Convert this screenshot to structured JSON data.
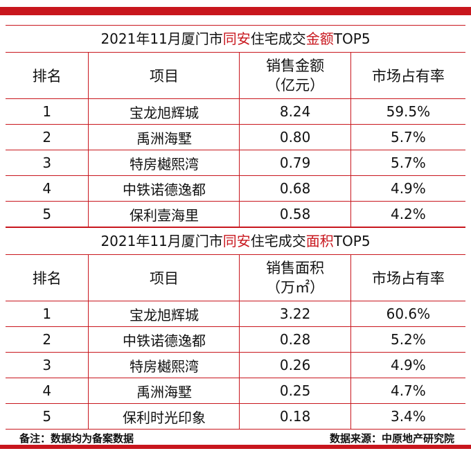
{
  "table1": {
    "title_prefix": "2021年11月厦门市",
    "title_hl1": "同安",
    "title_mid": "住宅成交",
    "title_hl2": "金额",
    "title_suffix": "TOP5",
    "headers": [
      "排名",
      "项目",
      "销售金额\n（亿元）",
      "市场占有率"
    ],
    "rows": [
      [
        "1",
        "宝龙旭辉城",
        "8.24",
        "59.5%"
      ],
      [
        "2",
        "禹洲海墅",
        "0.80",
        "5.7%"
      ],
      [
        "3",
        "特房樾熙湾",
        "0.79",
        "5.7%"
      ],
      [
        "4",
        "中铁诺德逸都",
        "0.68",
        "4.9%"
      ],
      [
        "5",
        "保利壹海里",
        "0.58",
        "4.2%"
      ]
    ]
  },
  "table2": {
    "title_prefix": "2021年11月厦门市",
    "title_hl1": "同安",
    "title_mid": "住宅成交",
    "title_hl2": "面积",
    "title_suffix": "TOP5",
    "headers": [
      "排名",
      "项目",
      "销售面积\n（万㎡）",
      "市场占有率"
    ],
    "rows": [
      [
        "1",
        "宝龙旭辉城",
        "3.22",
        "60.6%"
      ],
      [
        "2",
        "中铁诺德逸都",
        "0.28",
        "5.2%"
      ],
      [
        "3",
        "特房樾熙湾",
        "0.26",
        "4.9%"
      ],
      [
        "4",
        "禹洲海墅",
        "0.25",
        "4.7%"
      ],
      [
        "5",
        "保利时光印象",
        "0.18",
        "3.4%"
      ]
    ]
  },
  "footer": {
    "note": "备注：数据均为备案数据",
    "source": "数据来源：中原地产研究院"
  },
  "colors": {
    "accent": "#c8161d"
  }
}
